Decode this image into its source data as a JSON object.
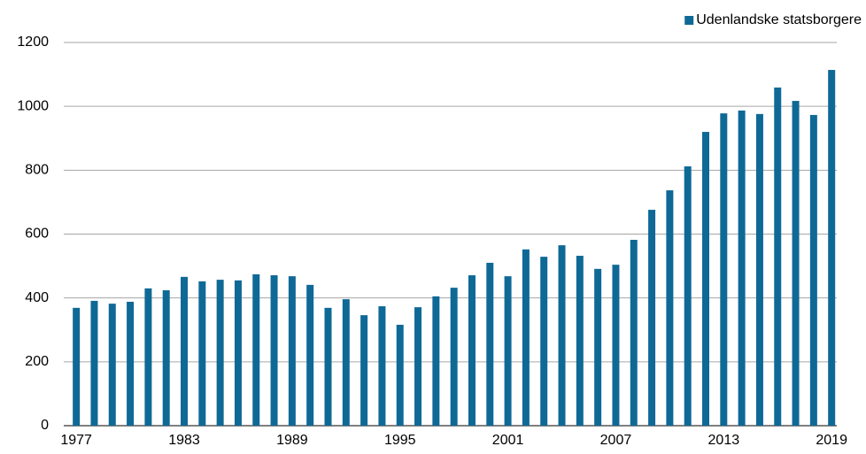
{
  "chart_data": {
    "type": "bar",
    "categories": [
      "1977",
      null,
      null,
      null,
      null,
      null,
      "1983",
      null,
      null,
      null,
      null,
      null,
      "1989",
      null,
      null,
      null,
      null,
      null,
      "1995",
      null,
      null,
      null,
      null,
      null,
      "2001",
      null,
      null,
      null,
      null,
      null,
      "2007",
      null,
      null,
      null,
      null,
      null,
      "2013",
      null,
      null,
      null,
      null,
      null,
      "2019"
    ],
    "series": [
      {
        "name": "Udenlandske statsborgere",
        "color": "#0f6996",
        "values": [
          369,
          391,
          382,
          388,
          430,
          424,
          466,
          452,
          457,
          455,
          474,
          471,
          468,
          441,
          369,
          396,
          346,
          374,
          316,
          371,
          405,
          432,
          471,
          510,
          468,
          552,
          529,
          565,
          532,
          491,
          504,
          582,
          676,
          737,
          812,
          920,
          978,
          987,
          976,
          1059,
          1017,
          973,
          1114
        ]
      }
    ],
    "ylim": [
      0,
      1200
    ],
    "yticks": [
      0,
      200,
      400,
      600,
      800,
      1000,
      1200
    ],
    "grid": true,
    "legend": "top-right"
  }
}
